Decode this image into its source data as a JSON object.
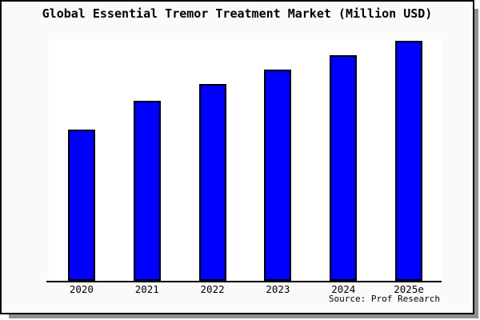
{
  "window": {
    "background": "#fafafa",
    "border_color": "#000000",
    "shadow_color": "#909090",
    "plot_background": "#ffffff"
  },
  "source_note": "Source: Prof Research",
  "chart_data": {
    "type": "bar",
    "title": "Global Essential Tremor Treatment Market (Million USD)",
    "xlabel": "",
    "ylabel": "",
    "categories": [
      "2020",
      "2021",
      "2022",
      "2023",
      "2024",
      "2025e"
    ],
    "values": [
      63,
      75,
      82,
      88,
      94,
      100
    ],
    "values_unit": "relative index (no y-axis scale shown; tallest bar = 100)",
    "ylim": [
      0,
      100
    ],
    "bar_color": "#0000ff",
    "bar_edge_color": "#000000",
    "grid": false,
    "y_axis_visible": false,
    "legend": null
  }
}
